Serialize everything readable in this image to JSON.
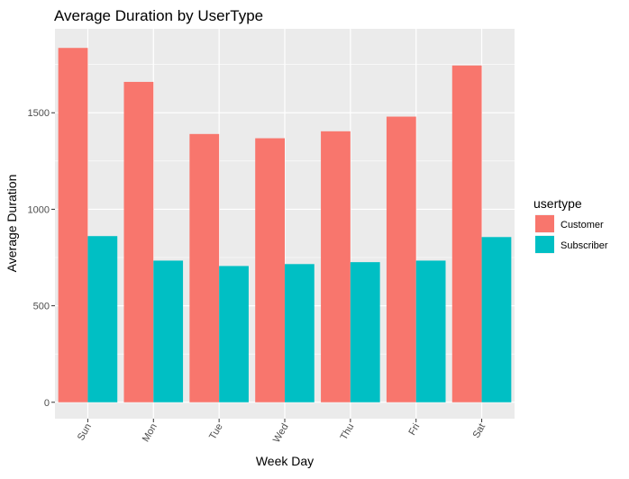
{
  "chart_data": {
    "type": "bar",
    "title": "Average Duration by UserType",
    "xlabel": "Week Day",
    "ylabel": "Average Duration",
    "categories": [
      "Sun",
      "Mon",
      "Tue",
      "Wed",
      "Thu",
      "Fri",
      "Sat"
    ],
    "series": [
      {
        "name": "Customer",
        "color": "#F8766D",
        "values": [
          1836,
          1660,
          1390,
          1368,
          1404,
          1480,
          1745
        ]
      },
      {
        "name": "Subscriber",
        "color": "#00BFC4",
        "values": [
          861,
          734,
          706,
          716,
          726,
          734,
          856
        ]
      }
    ],
    "yticks": [
      0,
      500,
      1000,
      1500
    ],
    "ylim": [
      -85,
      1935
    ],
    "grid": true,
    "legend": {
      "title": "usertype",
      "position": "right"
    },
    "panel_color": "#EBEBEB"
  }
}
